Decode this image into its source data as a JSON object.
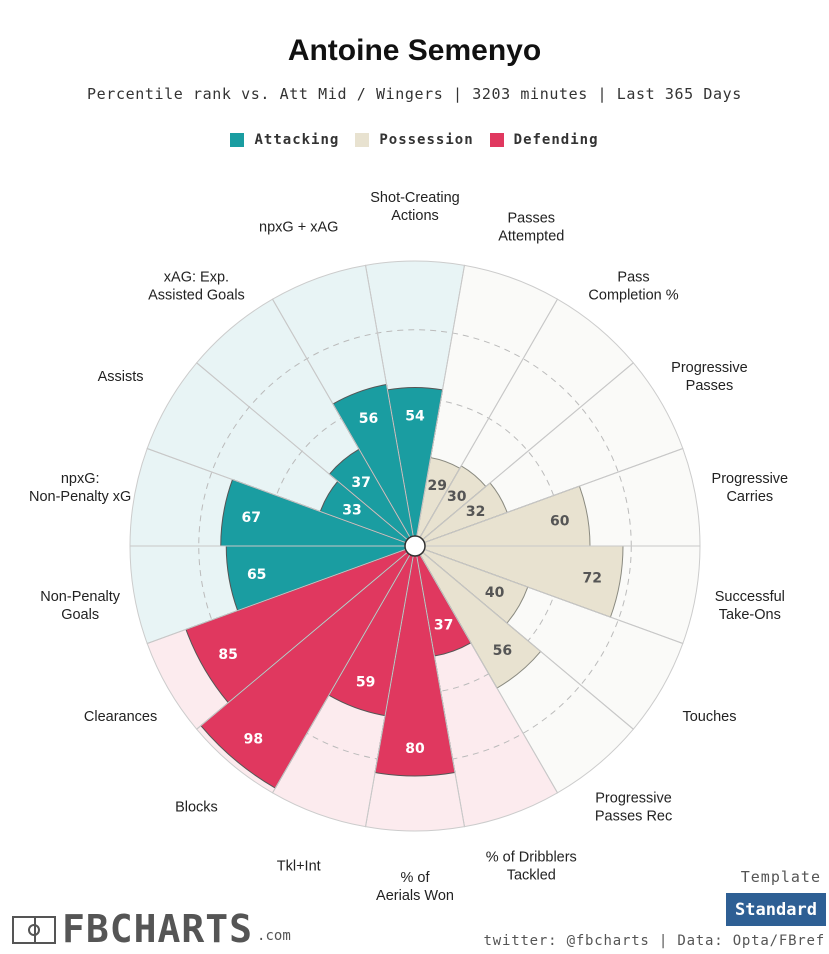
{
  "player_name": "Antoine Semenyo",
  "subtitle": "Percentile rank vs. Att Mid / Wingers | 3203 minutes | Last 365 Days",
  "legend": [
    {
      "label": "Attacking",
      "color": "#1a9da1"
    },
    {
      "label": "Possession",
      "color": "#e8e2d0"
    },
    {
      "label": "Defending",
      "color": "#e0385f"
    }
  ],
  "chart_data": {
    "type": "polar-bar",
    "title": "Antoine Semenyo",
    "range": [
      0,
      100
    ],
    "gridlines": [
      25,
      50,
      75,
      100
    ],
    "groups": [
      {
        "name": "Attacking",
        "color": "#1a9da1",
        "light_color": "#e8f4f5"
      },
      {
        "name": "Possession",
        "color": "#e8e2d0",
        "light_color": "#fafaf8"
      },
      {
        "name": "Defending",
        "color": "#e0385f",
        "light_color": "#fcebee"
      }
    ],
    "categories": [
      {
        "label": "Shot-Creating Actions",
        "value": 54,
        "group": "Attacking"
      },
      {
        "label": "Passes Attempted",
        "value": 29,
        "group": "Possession"
      },
      {
        "label": "Pass Completion %",
        "value": 30,
        "group": "Possession"
      },
      {
        "label": "Progressive Passes",
        "value": 32,
        "group": "Possession"
      },
      {
        "label": "Progressive Carries",
        "value": 60,
        "group": "Possession"
      },
      {
        "label": "Successful Take-Ons",
        "value": 72,
        "group": "Possession"
      },
      {
        "label": "Touches",
        "value": 40,
        "group": "Possession"
      },
      {
        "label": "Progressive Passes Rec",
        "value": 56,
        "group": "Possession"
      },
      {
        "label": "% of Dribblers Tackled",
        "value": 37,
        "group": "Defending"
      },
      {
        "label": "% of Aerials Won",
        "value": 80,
        "group": "Defending"
      },
      {
        "label": "Tkl+Int",
        "value": 59,
        "group": "Defending"
      },
      {
        "label": "Blocks",
        "value": 98,
        "group": "Defending"
      },
      {
        "label": "Clearances",
        "value": 85,
        "group": "Defending"
      },
      {
        "label": "Non-Penalty Goals",
        "value": 65,
        "group": "Attacking"
      },
      {
        "label": "npxG: Non-Penalty xG",
        "value": 67,
        "group": "Attacking"
      },
      {
        "label": "Assists",
        "value": 33,
        "group": "Attacking"
      },
      {
        "label": "xAG: Exp. Assisted Goals",
        "value": 37,
        "group": "Attacking"
      },
      {
        "label": "npxG + xAG",
        "value": 56,
        "group": "Attacking"
      }
    ]
  },
  "footer": {
    "logo_text": "FBCHARTS",
    "logo_suffix": ".com",
    "template_label": "Template",
    "template_value": "Standard",
    "credits": "twitter: @fbcharts | Data: Opta/FBref"
  }
}
